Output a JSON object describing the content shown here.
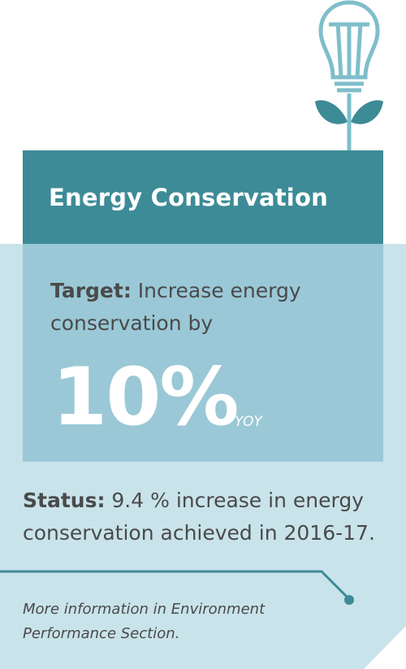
{
  "header": {
    "title": "Energy Conservation"
  },
  "target": {
    "label": "Target:",
    "text": "Increase energy conservation by",
    "figure": "10%",
    "unit": "YOY"
  },
  "status": {
    "label": "Status:",
    "text": "9.4 % increase in energy conservation achieved in 2016-17."
  },
  "footer": {
    "note": "More information in Environment Performance Section."
  }
}
